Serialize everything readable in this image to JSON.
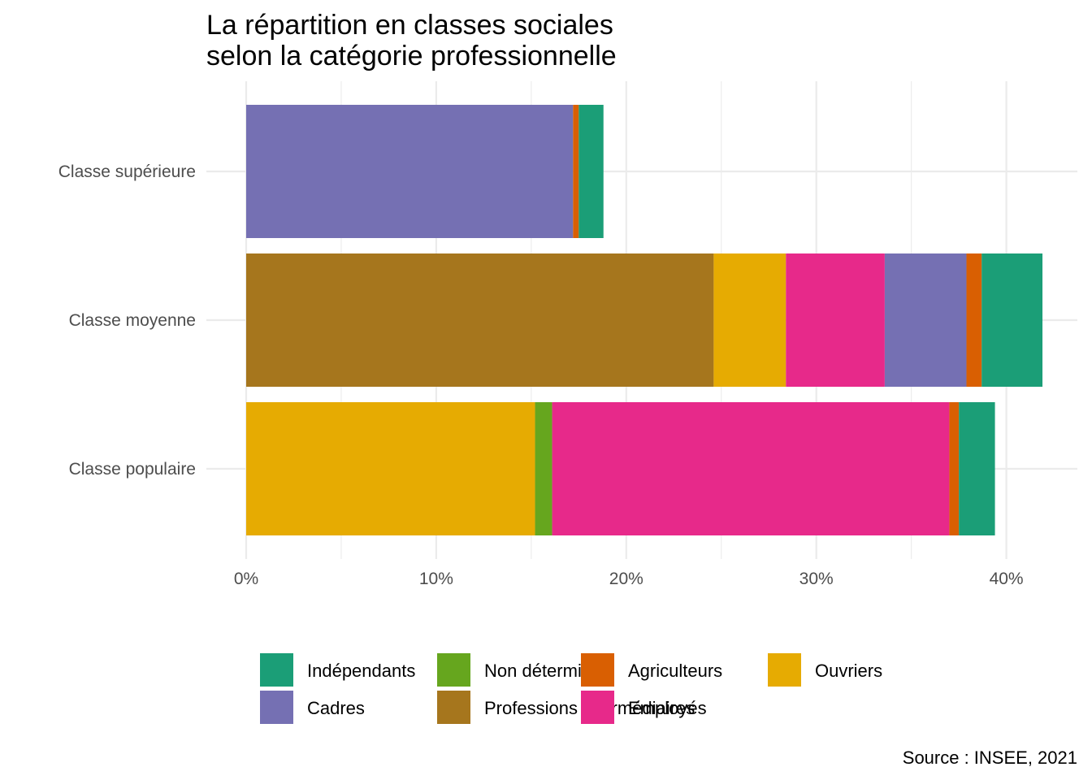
{
  "chart_data": {
    "type": "bar",
    "orientation": "horizontal",
    "stacked": true,
    "title": [
      "La répartition en classes sociales",
      "selon la catégorie professionnelle"
    ],
    "caption": "Source : INSEE, 2021",
    "categories": [
      "Classe supérieure",
      "Classe moyenne",
      "Classe populaire"
    ],
    "x_ticks": [
      0,
      10,
      20,
      30,
      40
    ],
    "x_tick_labels": [
      "0%",
      "10%",
      "20%",
      "30%",
      "40%"
    ],
    "xlim": [
      0,
      43.5
    ],
    "grid": true,
    "legend_position": "bottom",
    "legend_order": [
      "Indépendants",
      "Cadres",
      "Non déterminé",
      "Professions intermédiaires",
      "Agriculteurs",
      "Employés",
      "Ouvriers"
    ],
    "stack_order": [
      "Professions intermédiaires",
      "Ouvriers",
      "Non déterminé",
      "Employés",
      "Cadres",
      "Agriculteurs",
      "Indépendants"
    ],
    "colors": {
      "Indépendants": "#1b9e77",
      "Agriculteurs": "#d95f02",
      "Cadres": "#7570b3",
      "Employés": "#e7298a",
      "Non déterminé": "#66a61e",
      "Ouvriers": "#e6ab02",
      "Professions intermédiaires": "#a6761d"
    },
    "series": [
      {
        "name": "Professions intermédiaires",
        "values": [
          0,
          24.6,
          0
        ]
      },
      {
        "name": "Ouvriers",
        "values": [
          0,
          3.8,
          15.2
        ]
      },
      {
        "name": "Non déterminé",
        "values": [
          0,
          0,
          0.9
        ]
      },
      {
        "name": "Employés",
        "values": [
          0,
          5.2,
          20.9
        ]
      },
      {
        "name": "Cadres",
        "values": [
          17.2,
          4.3,
          0
        ]
      },
      {
        "name": "Agriculteurs",
        "values": [
          0.3,
          0.8,
          0.5
        ]
      },
      {
        "name": "Indépendants",
        "values": [
          1.3,
          3.2,
          1.9
        ]
      }
    ]
  }
}
